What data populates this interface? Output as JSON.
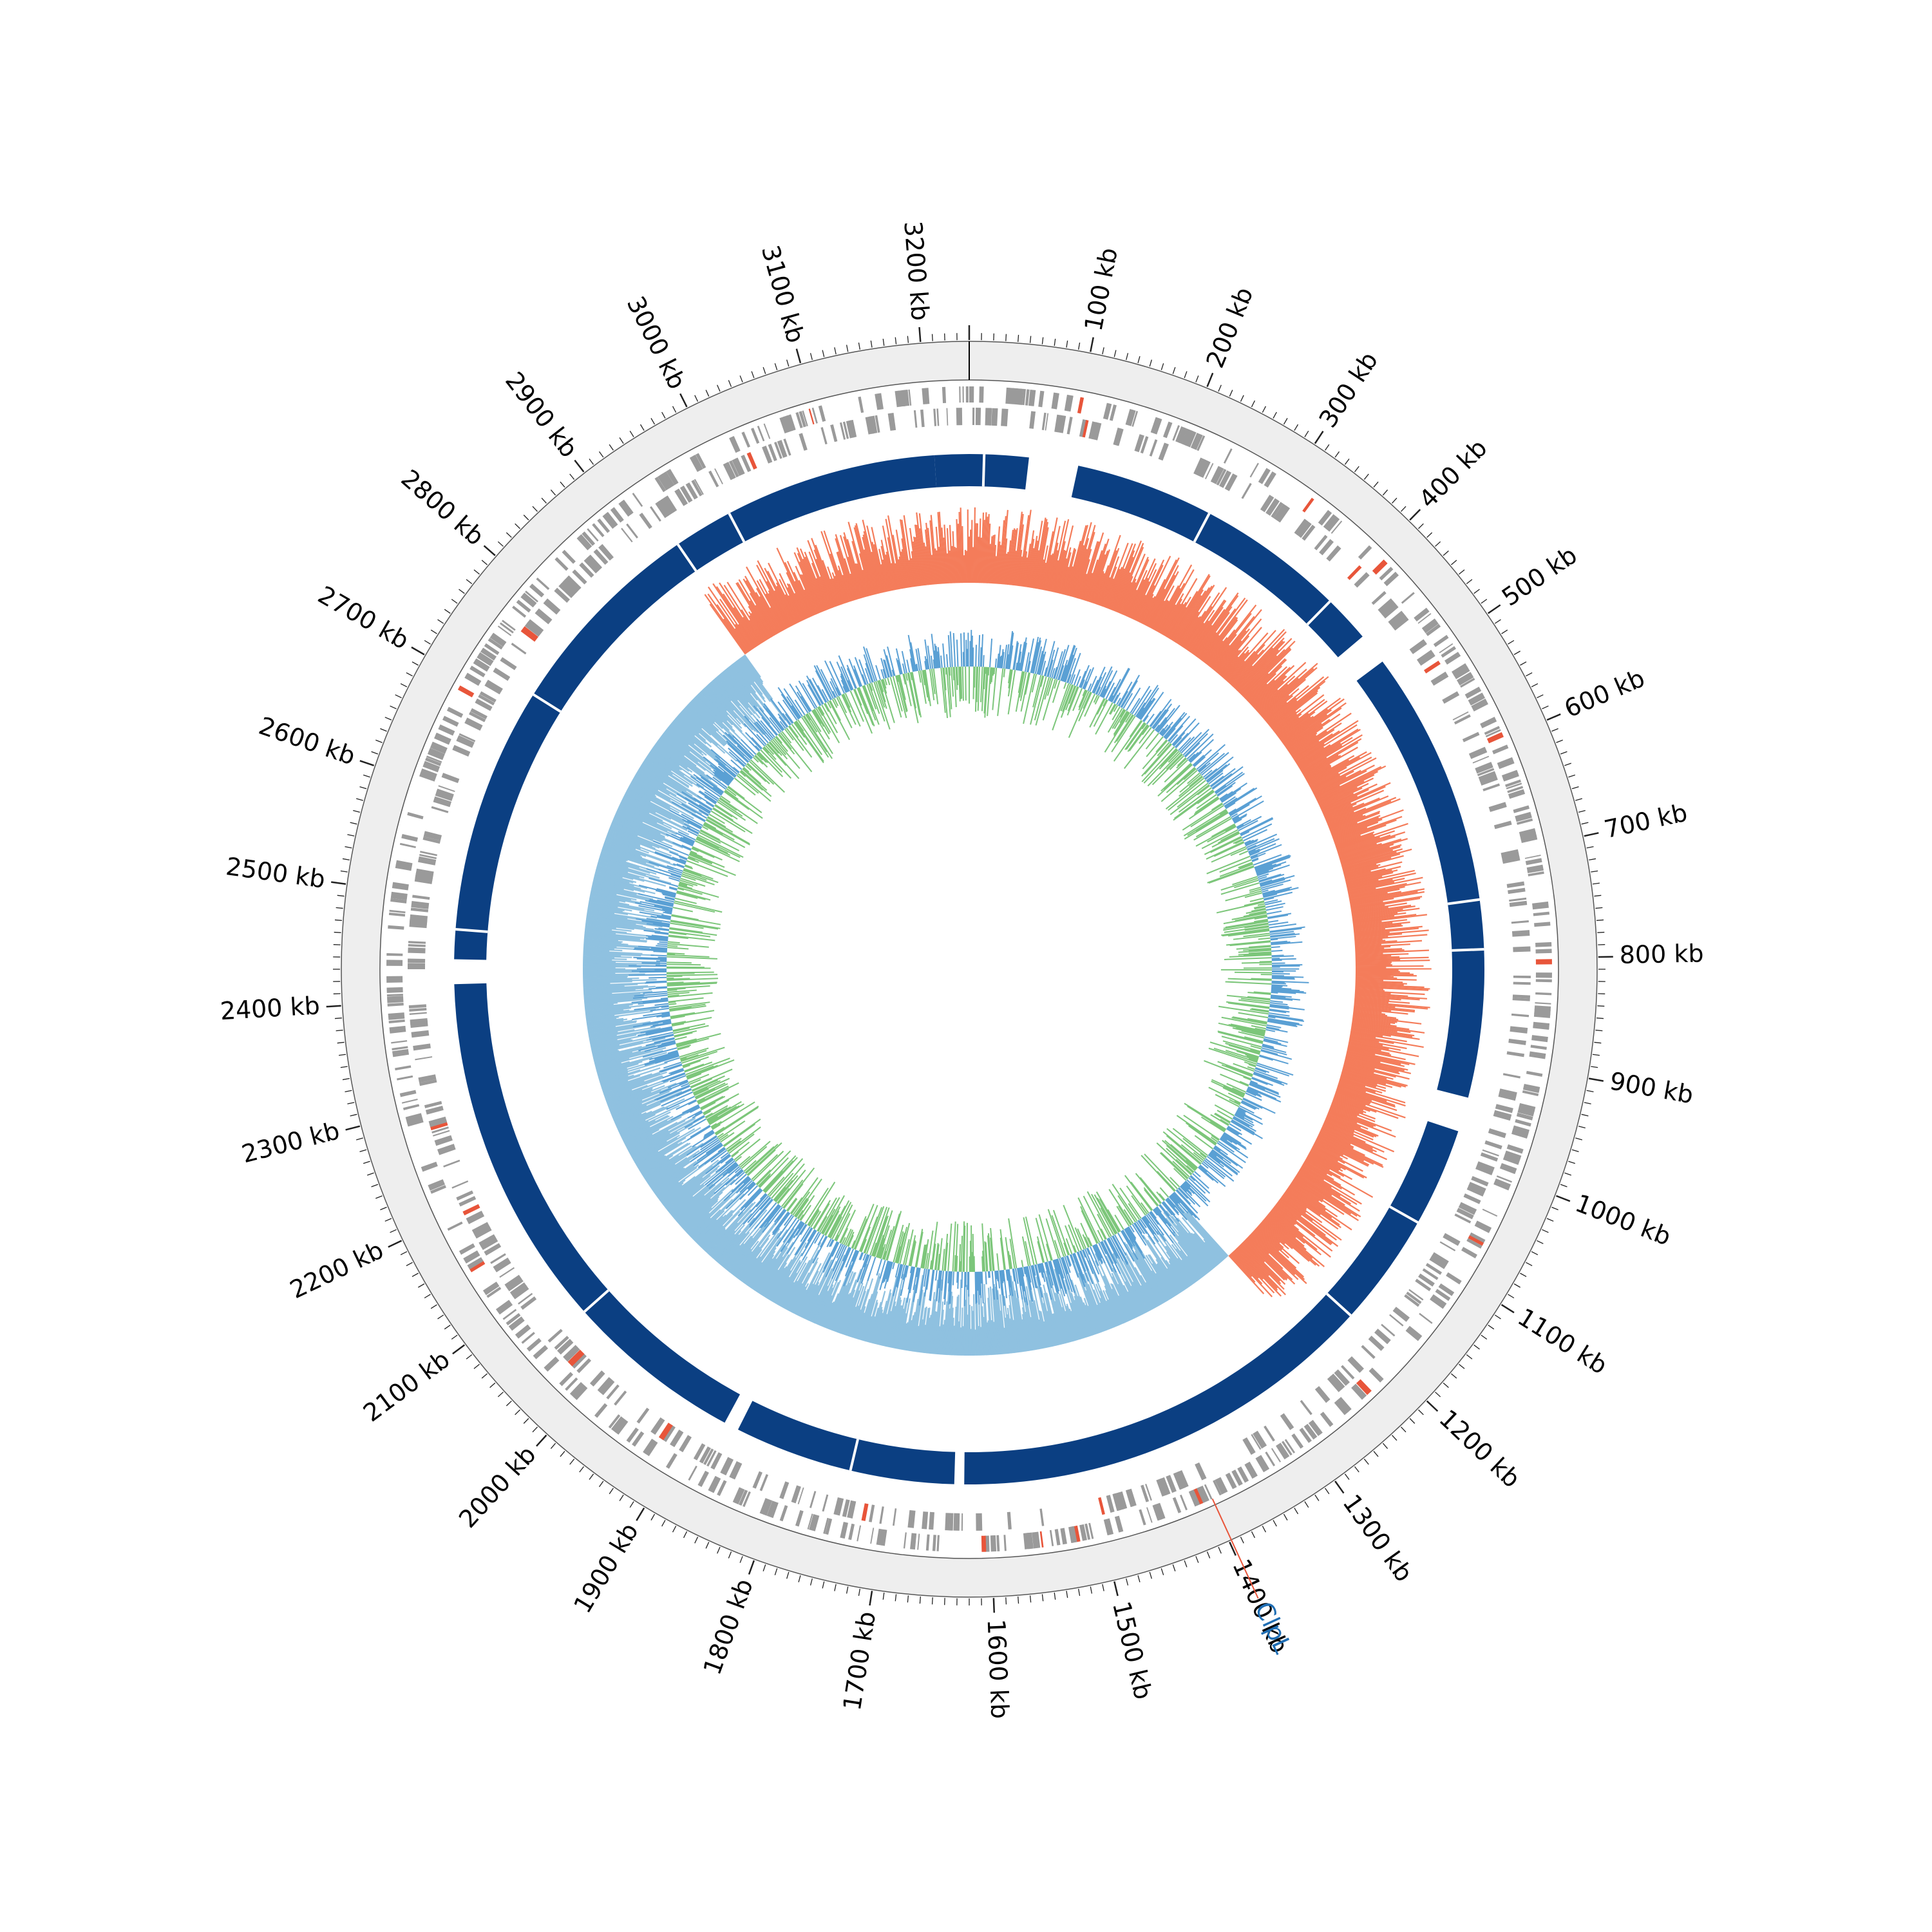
{
  "genome": {
    "length_kb": 3240,
    "tick_labels": [
      "100 kb",
      "200 kb",
      "300 kb",
      "400 kb",
      "500 kb",
      "600 kb",
      "700 kb",
      "800 kb",
      "900 kb",
      "1000 kb",
      "1100 kb",
      "1200 kb",
      "1300 kb",
      "1400 kb",
      "1500 kb",
      "1600 kb",
      "1700 kb",
      "1800 kb",
      "1900 kb",
      "2000 kb",
      "2100 kb",
      "2200 kb",
      "2300 kb",
      "2400 kb",
      "2500 kb",
      "2600 kb",
      "2700 kb",
      "2800 kb",
      "2900 kb",
      "3000 kb",
      "3100 kb",
      "3200 kb"
    ],
    "tick_positions_kb": [
      100,
      200,
      300,
      400,
      500,
      600,
      700,
      800,
      900,
      1000,
      1100,
      1200,
      1300,
      1400,
      1500,
      1600,
      1700,
      1800,
      1900,
      2000,
      2100,
      2200,
      2300,
      2400,
      2500,
      2600,
      2700,
      2800,
      2900,
      3000,
      3100,
      3200
    ]
  },
  "highlight": {
    "label": "ClpL",
    "position_kb": 1398,
    "label_color": "#1f6eb4",
    "marker_color": "#e8553a"
  },
  "tracks": {
    "contig_color": "#0b3f82",
    "contig_gaps_kb": [
      [
        60,
        110
      ],
      [
        448,
        475
      ],
      [
        475,
        480
      ],
      [
        940,
        975
      ],
      [
        2415,
        2440
      ],
      [
        1860,
        1875
      ],
      [
        1625,
        1635
      ]
    ],
    "gc_content_colors": {
      "positive": "#f47c5a",
      "negative": "#8fc1e0"
    },
    "gc_skew_colors": {
      "positive": "#5aa0d4",
      "negative": "#7cc67a"
    },
    "cds_color": "#9a9a9a",
    "rna_color": "#e8553a",
    "background_band_color": "#eeeeee"
  }
}
